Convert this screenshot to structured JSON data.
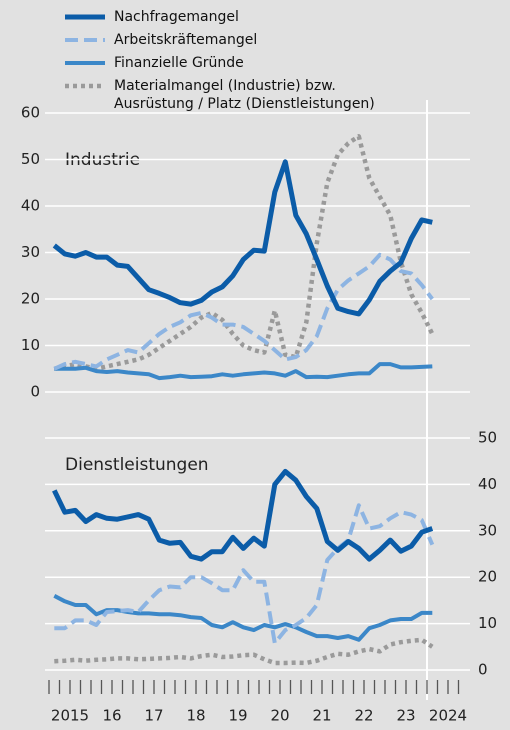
{
  "chart_data": [
    {
      "type": "line",
      "panel_title": "Industrie",
      "yaxis_position": "left",
      "legend": "top-left",
      "grid": true,
      "x": [
        2015.125,
        2015.375,
        2015.625,
        2015.875,
        2016.125,
        2016.375,
        2016.625,
        2016.875,
        2017.125,
        2017.375,
        2017.625,
        2017.875,
        2018.125,
        2018.375,
        2018.625,
        2018.875,
        2019.125,
        2019.375,
        2019.625,
        2019.875,
        2020.125,
        2020.375,
        2020.625,
        2020.875,
        2021.125,
        2021.375,
        2021.625,
        2021.875,
        2022.125,
        2022.375,
        2022.625,
        2022.875,
        2023.125,
        2023.375,
        2023.625,
        2023.875,
        2024.125
      ],
      "xlim": [
        2015,
        2025
      ],
      "ylim": [
        0,
        60
      ],
      "yticks": [
        0,
        10,
        20,
        30,
        40,
        50,
        60
      ],
      "series": [
        {
          "name": "Nachfragemangel",
          "color": "#0b5ca8",
          "values": [
            31.5,
            29.7,
            29.2,
            30,
            29,
            29,
            27.3,
            27,
            24.5,
            22,
            21.2,
            20.3,
            19.2,
            18.9,
            19.7,
            21.5,
            22.6,
            25,
            28.5,
            30.5,
            30.3,
            43,
            49.5,
            38,
            34,
            28.5,
            22.8,
            18,
            17.3,
            16.8,
            19.8,
            23.8,
            26,
            27.8,
            33,
            37,
            36.5
          ]
        },
        {
          "name": "Arbeitskräftemangel",
          "color": "#8db4e2",
          "values": [
            5,
            6,
            6.5,
            6,
            5.5,
            7,
            8,
            9,
            8.5,
            10.5,
            12.5,
            14,
            15,
            16.5,
            17,
            16,
            14.5,
            14.5,
            14,
            12.5,
            11,
            9,
            7,
            7.5,
            9,
            12,
            18,
            22,
            24,
            25.5,
            27,
            29.5,
            28.5,
            26,
            25.5,
            23,
            20
          ]
        },
        {
          "name": "Finanzielle Gründe",
          "color": "#3b87c8",
          "values": [
            5,
            5,
            5,
            5.2,
            4.5,
            4.3,
            4.5,
            4.2,
            4,
            3.8,
            3,
            3.2,
            3.5,
            3.2,
            3.3,
            3.4,
            3.8,
            3.5,
            3.8,
            4,
            4.2,
            4,
            3.5,
            4.5,
            3.2,
            3.3,
            3.2,
            3.5,
            3.8,
            4,
            4,
            6,
            6,
            5.3,
            5.3,
            5.4,
            5.5
          ]
        },
        {
          "name": "Materialmangel (Industrie) bzw. Ausrüstung / Platz (Dienstleistungen)",
          "color": "#9a9a9a",
          "values": [
            5,
            5.5,
            6,
            5.5,
            5,
            5.5,
            6,
            6.5,
            7,
            8,
            9.5,
            11,
            12.5,
            14,
            16,
            17,
            15.5,
            12.5,
            10,
            9,
            8.5,
            17.5,
            8,
            7.5,
            15,
            32,
            45,
            51,
            53.5,
            55,
            46,
            42,
            38,
            28,
            21,
            17,
            12.5
          ]
        }
      ]
    },
    {
      "type": "line",
      "panel_title": "Dienstleistungen",
      "yaxis_position": "right",
      "grid": true,
      "x": [
        2015.125,
        2015.375,
        2015.625,
        2015.875,
        2016.125,
        2016.375,
        2016.625,
        2016.875,
        2017.125,
        2017.375,
        2017.625,
        2017.875,
        2018.125,
        2018.375,
        2018.625,
        2018.875,
        2019.125,
        2019.375,
        2019.625,
        2019.875,
        2020.125,
        2020.375,
        2020.625,
        2020.875,
        2021.125,
        2021.375,
        2021.625,
        2021.875,
        2022.125,
        2022.375,
        2022.625,
        2022.875,
        2023.125,
        2023.375,
        2023.625,
        2023.875,
        2024.125
      ],
      "xlim": [
        2015,
        2025
      ],
      "ylim": [
        0,
        50
      ],
      "yticks": [
        0,
        10,
        20,
        30,
        40,
        50
      ],
      "xticks": [
        {
          "value": 2015.5,
          "label": "2015"
        },
        {
          "value": 2016.5,
          "label": "16"
        },
        {
          "value": 2017.5,
          "label": "17"
        },
        {
          "value": 2018.5,
          "label": "18"
        },
        {
          "value": 2019.5,
          "label": "19"
        },
        {
          "value": 2020.5,
          "label": "20"
        },
        {
          "value": 2021.5,
          "label": "21"
        },
        {
          "value": 2022.5,
          "label": "22"
        },
        {
          "value": 2023.5,
          "label": "23"
        },
        {
          "value": 2024.5,
          "label": "2024"
        }
      ],
      "xminorticks": [
        2015,
        2015.25,
        2015.5,
        2015.75,
        2016,
        2016.25,
        2016.5,
        2016.75,
        2017,
        2017.25,
        2017.5,
        2017.75,
        2018,
        2018.25,
        2018.5,
        2018.75,
        2019,
        2019.25,
        2019.5,
        2019.75,
        2020,
        2020.25,
        2020.5,
        2020.75,
        2021,
        2021.25,
        2021.5,
        2021.75,
        2022,
        2022.25,
        2022.5,
        2022.75,
        2023,
        2023.25,
        2023.5,
        2023.75,
        2024,
        2024.25,
        2024.5,
        2024.75
      ],
      "series": [
        {
          "color": "#0b5ca8",
          "values": [
            38.7,
            34,
            34.4,
            32,
            33.5,
            32.7,
            32.5,
            33,
            33.5,
            32.5,
            28,
            27.3,
            27.5,
            24.5,
            23.9,
            25.5,
            25.5,
            28.6,
            26.2,
            28.4,
            26.7,
            40,
            42.8,
            40.9,
            37.4,
            34.8,
            27.7,
            25.8,
            27.7,
            26.2,
            23.9,
            25.8,
            28,
            25.6,
            26.7,
            29.7,
            30.5
          ]
        },
        {
          "color": "#8db4e2",
          "values": [
            9,
            9,
            10.7,
            10.7,
            9.7,
            12.5,
            12.7,
            12.9,
            12.5,
            15,
            17.2,
            18,
            17.8,
            20,
            20,
            18.7,
            17.2,
            17.2,
            21.5,
            19,
            19,
            5.8,
            8.6,
            9.7,
            11.2,
            14,
            23.7,
            26.2,
            28,
            35.5,
            30.5,
            31,
            32.7,
            34,
            33.5,
            32.3,
            27
          ]
        },
        {
          "color": "#3b87c8",
          "values": [
            16,
            14.8,
            14,
            14,
            12,
            12.9,
            12.9,
            12.5,
            12.2,
            12.2,
            12,
            12,
            11.8,
            11.4,
            11.2,
            9.7,
            9.2,
            10.3,
            9.2,
            8.6,
            9.7,
            9.2,
            9.9,
            9.2,
            8.2,
            7.3,
            7.3,
            6.9,
            7.3,
            6.5,
            9,
            9.7,
            10.7,
            11,
            11,
            12.3,
            12.3
          ]
        },
        {
          "color": "#9a9a9a",
          "values": [
            1.9,
            2,
            2.2,
            2,
            2.2,
            2.3,
            2.5,
            2.5,
            2.3,
            2.4,
            2.5,
            2.6,
            2.8,
            2.5,
            3,
            3.3,
            2.8,
            2.9,
            3.2,
            3.3,
            2.3,
            1.5,
            1.5,
            1.6,
            1.5,
            2,
            2.8,
            3.5,
            3.3,
            4,
            4.5,
            4,
            5.5,
            6,
            6.3,
            6.5,
            5
          ]
        }
      ]
    }
  ]
}
